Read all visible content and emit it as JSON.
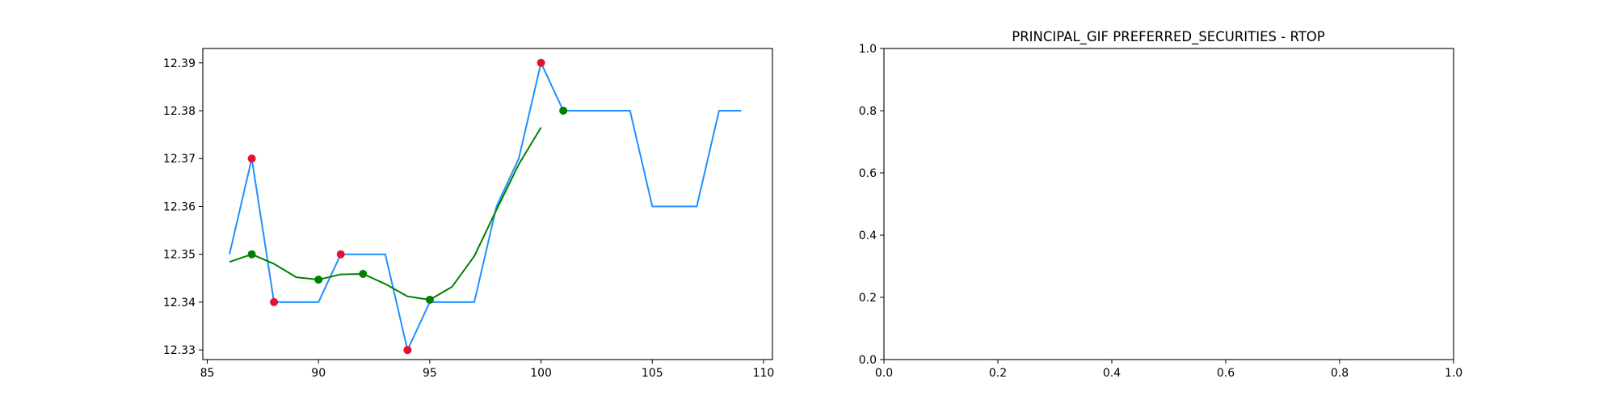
{
  "chart_data": [
    {
      "type": "line",
      "title": "",
      "xlabel": "",
      "ylabel": "",
      "xlim": [
        84.8,
        110.4
      ],
      "ylim": [
        12.328,
        12.393
      ],
      "xticks": [
        85,
        90,
        95,
        100,
        105,
        110
      ],
      "yticks": [
        12.33,
        12.34,
        12.35,
        12.36,
        12.37,
        12.38,
        12.39
      ],
      "ytick_decimals": 2,
      "grid": false,
      "series": [
        {
          "kind": "line",
          "color": "#1e90ff",
          "x": [
            86,
            87,
            88,
            89,
            90,
            91,
            92,
            93,
            94,
            95,
            96,
            97,
            98,
            99,
            100,
            101,
            102,
            103,
            104,
            105,
            106,
            107,
            108,
            109
          ],
          "y": [
            12.35,
            12.37,
            12.34,
            12.34,
            12.34,
            12.35,
            12.35,
            12.35,
            12.33,
            12.34,
            12.34,
            12.34,
            12.36,
            12.37,
            12.39,
            12.38,
            12.38,
            12.38,
            12.38,
            12.36,
            12.36,
            12.36,
            12.38,
            12.38
          ]
        },
        {
          "kind": "line",
          "color": "#008000",
          "x": [
            86,
            87,
            88,
            89,
            90,
            91,
            92,
            93,
            94,
            95,
            96,
            97,
            98,
            99,
            100
          ],
          "y": [
            12.3484,
            12.35,
            12.348,
            12.3452,
            12.3447,
            12.3458,
            12.3459,
            12.3438,
            12.3412,
            12.3405,
            12.3432,
            12.3496,
            12.3593,
            12.3688,
            12.3765
          ]
        },
        {
          "kind": "scatter",
          "color": "#e8112d",
          "x": [
            87,
            88,
            91,
            94,
            100
          ],
          "y": [
            12.37,
            12.34,
            12.35,
            12.33,
            12.39
          ]
        },
        {
          "kind": "scatter",
          "color": "#008000",
          "x": [
            87,
            90,
            92,
            95,
            101
          ],
          "y": [
            12.35,
            12.3447,
            12.3459,
            12.3405,
            12.38
          ]
        }
      ]
    },
    {
      "type": "line",
      "title": "PRINCIPAL_GIF PREFERRED_SECURITIES - RTOP",
      "xlabel": "",
      "ylabel": "",
      "xlim": [
        0,
        1
      ],
      "ylim": [
        0,
        1
      ],
      "xticks": [
        0.0,
        0.2,
        0.4,
        0.6,
        0.8,
        1.0
      ],
      "yticks": [
        0.0,
        0.2,
        0.4,
        0.6,
        0.8,
        1.0
      ],
      "xtick_decimals": 1,
      "ytick_decimals": 1,
      "grid": false,
      "series": []
    }
  ]
}
